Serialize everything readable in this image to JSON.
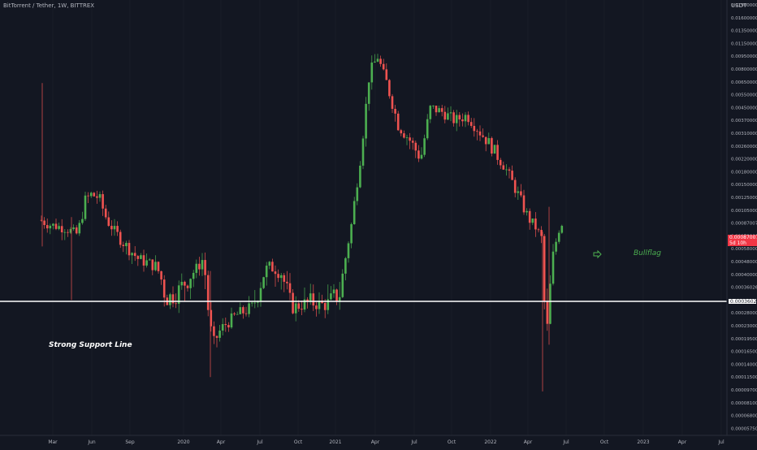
{
  "header": {
    "symbol_title": "BitTorrent / Tether, 1W, BITTREX",
    "currency": "USDT"
  },
  "colors": {
    "background": "#131722",
    "up": "#26a69a",
    "up_bright": "#4caf50",
    "down": "#ef5350",
    "grid": "#1e222d",
    "axis_text": "#b2b5be",
    "support_line": "#ffffff"
  },
  "annotations": {
    "support_label": "Strong Support Line",
    "bullflag_label": "Bullflag",
    "bullflag_icon": "pointing-hand-icon"
  },
  "price_tags": {
    "current_price": "0.00087007",
    "countdown": "5d 10h",
    "support_price": "0.00036026"
  },
  "chart_data": {
    "type": "candlestick",
    "title": "BitTorrent / Tether, 1W, BITTREX",
    "y_scale": "log",
    "ylim": [
      0.00056,
      0.0022
    ],
    "y_ticks": [
      "0.01900000",
      "0.01600000",
      "0.01350000",
      "0.01150000",
      "0.00950000",
      "0.00800000",
      "0.00650000",
      "0.00550000",
      "0.00450000",
      "0.00370000",
      "0.00310000",
      "0.00260000",
      "0.00220000",
      "0.00180000",
      "0.00150000",
      "0.00125000",
      "0.00105000",
      "0.00087007",
      "0.00070000",
      "0.00058000",
      "0.00048000",
      "0.00040000",
      "0.00036026",
      "0.00033000",
      "0.00028000",
      "0.00023000",
      "0.00019500",
      "0.00016500",
      "0.00014000",
      "0.00011500",
      "0.00009700",
      "0.00008100",
      "0.00006800",
      "0.00005750"
    ],
    "x_ticks": [
      "Mar",
      "Jun",
      "Sep",
      "2020",
      "Apr",
      "Jul",
      "Oct",
      "2021",
      "Apr",
      "Jul",
      "Oct",
      "2022",
      "Apr",
      "Jul",
      "Oct",
      "2023",
      "Apr",
      "Jul"
    ],
    "support_level": 0.00036026,
    "candles_summary": [
      {
        "period": "2019-03",
        "open": 0.00091,
        "high": 0.0064,
        "low": 0.0006,
        "close": 0.00088
      },
      {
        "period": "2019-06",
        "open": 0.00095,
        "high": 0.0016,
        "low": 0.00085,
        "close": 0.00125
      },
      {
        "period": "2019-12",
        "open": 0.00036,
        "high": 0.00045,
        "low": 0.00025,
        "close": 0.00033
      },
      {
        "period": "2020-04",
        "open": 0.00025,
        "high": 0.00055,
        "low": 0.0001,
        "close": 0.00018
      },
      {
        "period": "2020-07",
        "open": 0.0003,
        "high": 0.00055,
        "low": 0.00028,
        "close": 0.00045
      },
      {
        "period": "2021-04",
        "open": 0.0052,
        "high": 0.015,
        "low": 0.004,
        "close": 0.009
      },
      {
        "period": "2021-07",
        "open": 0.0035,
        "high": 0.0062,
        "low": 0.0025,
        "close": 0.0045
      },
      {
        "period": "2022-04",
        "open": 0.00065,
        "high": 0.0008,
        "low": 9.5e-05,
        "close": 0.00018
      },
      {
        "period": "2022-06",
        "open": 0.00075,
        "high": 0.0011,
        "low": 0.00045,
        "close": 0.00087007
      }
    ]
  }
}
